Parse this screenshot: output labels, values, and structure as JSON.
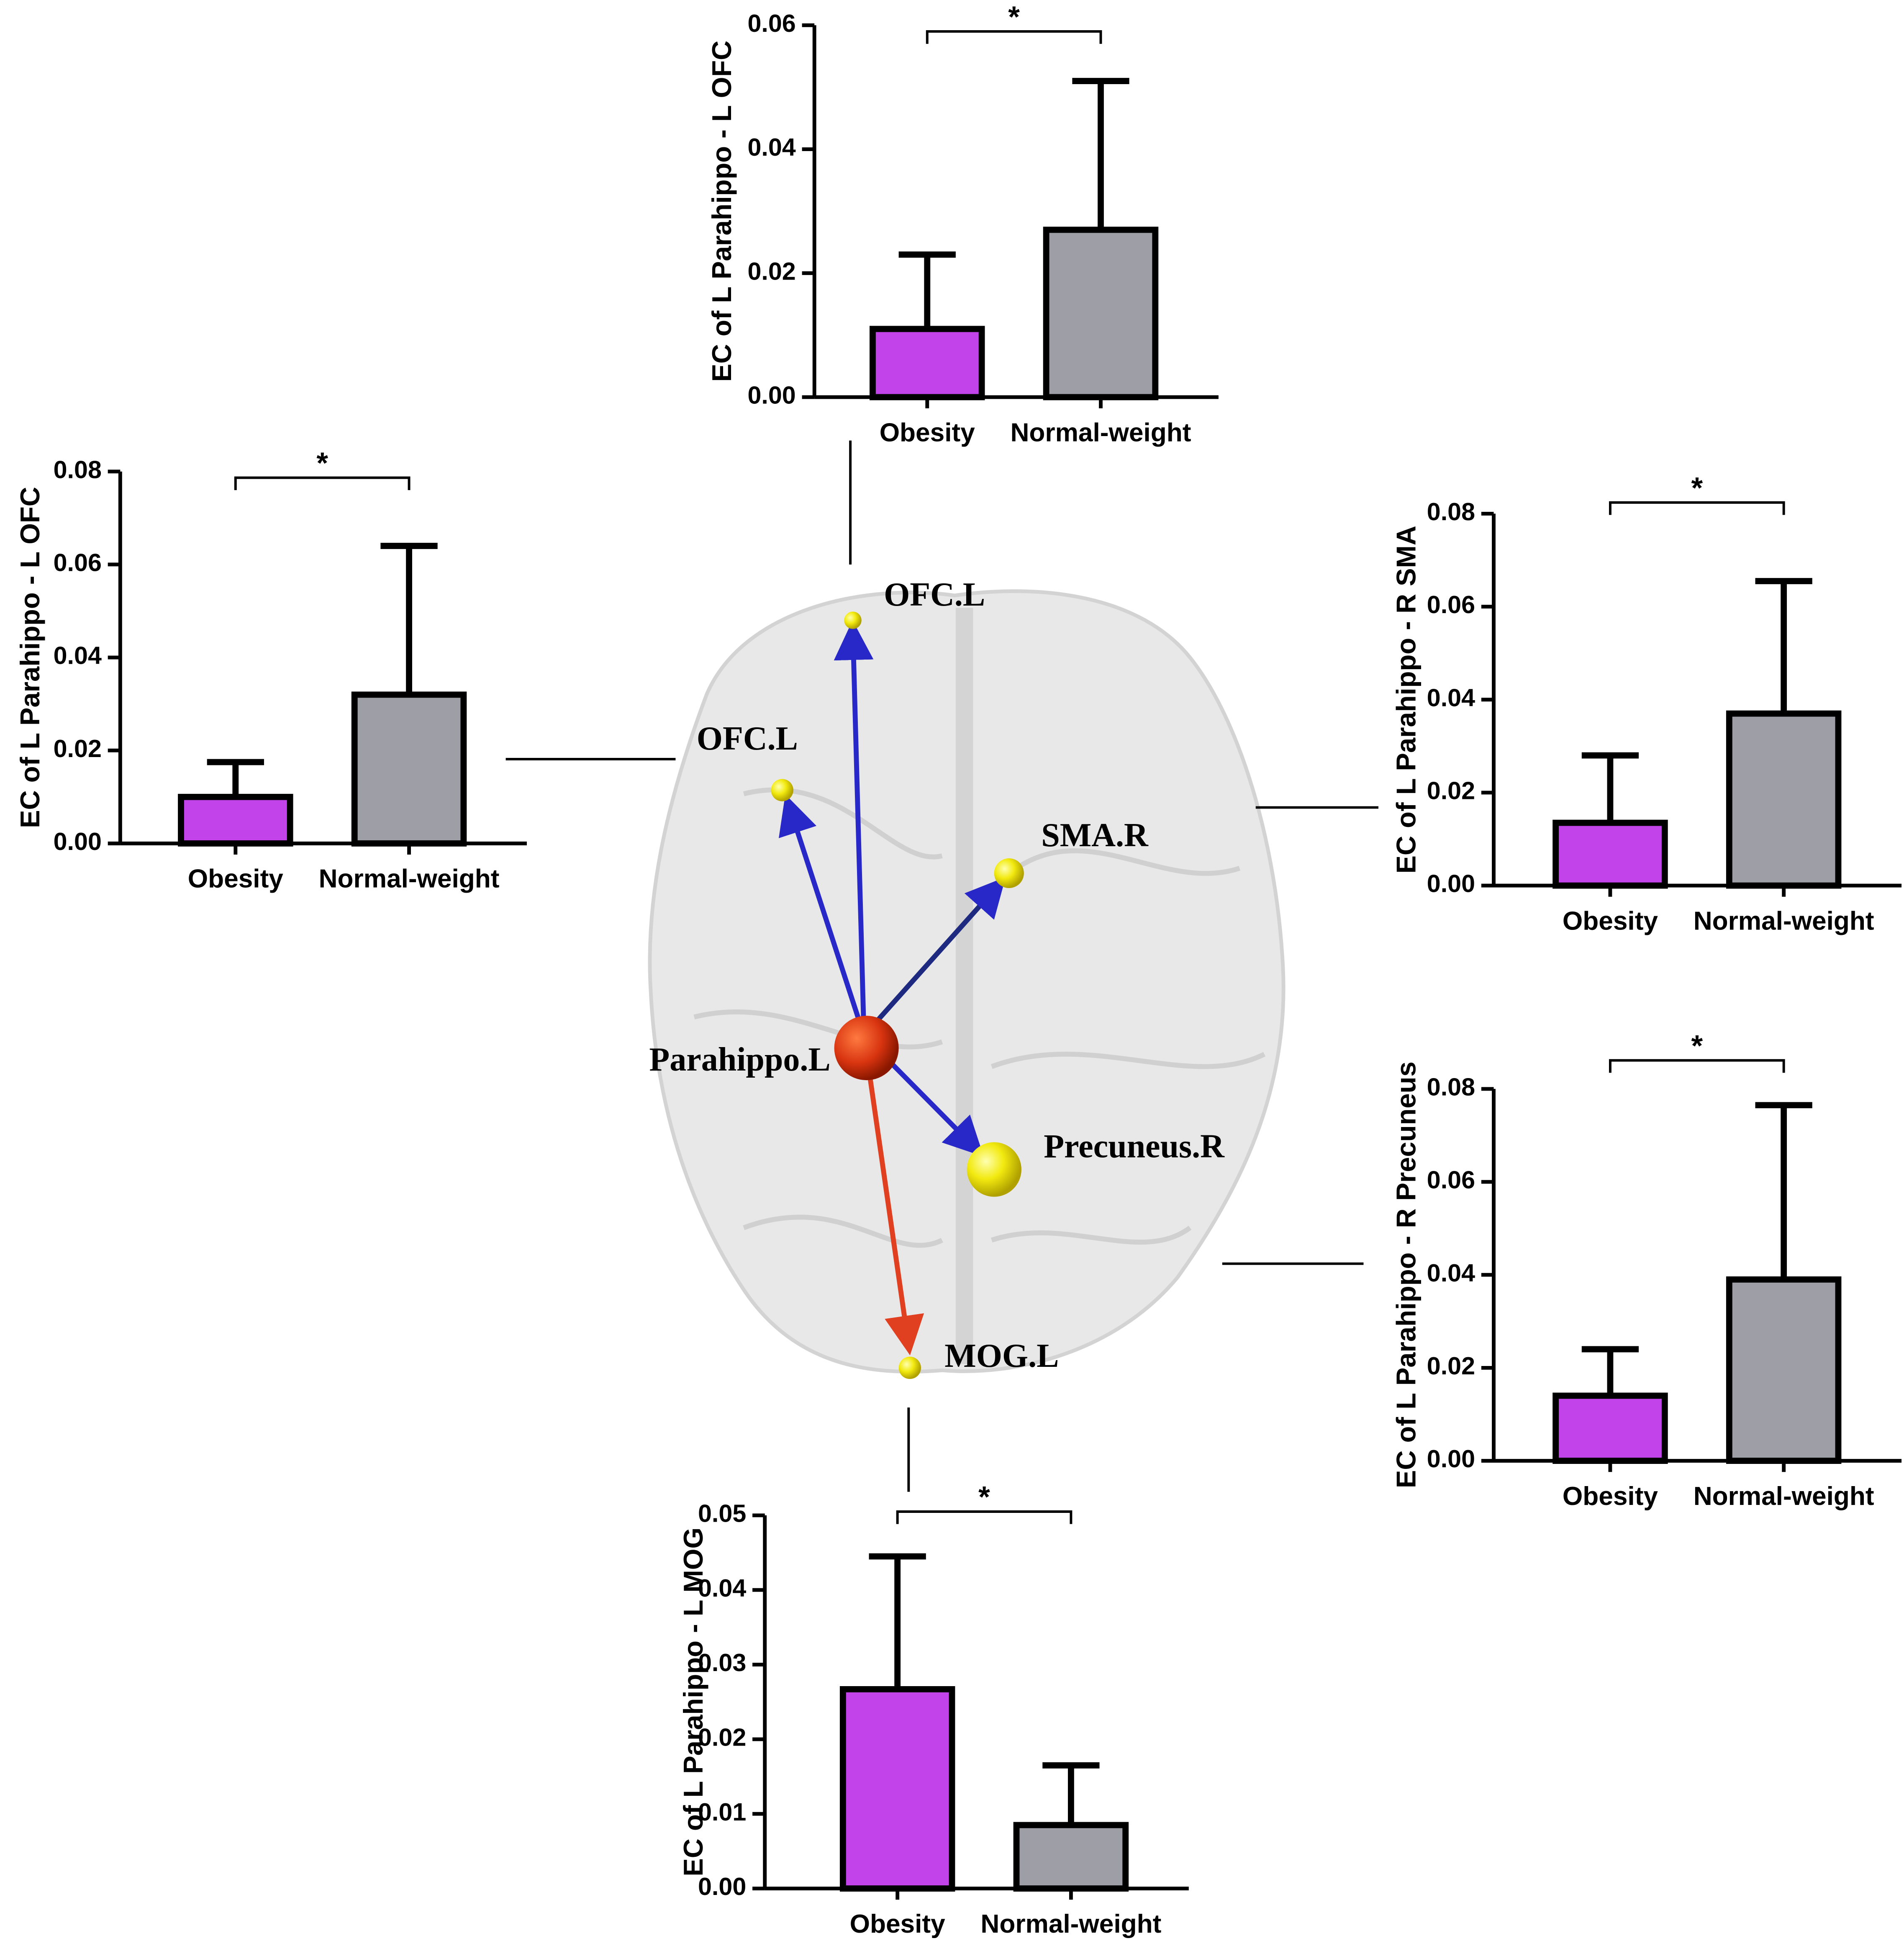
{
  "chart_data": [
    {
      "type": "bar",
      "ylabel": "EC of L Parahippo - L OFC",
      "categories": [
        "Obesity",
        "Normal-weight"
      ],
      "values": [
        0.011,
        0.027
      ],
      "errors": [
        0.012,
        0.024
      ],
      "colors": [
        "#c143e9",
        "#9e9ea6"
      ],
      "ylim": [
        0,
        0.06
      ],
      "yticks": [
        {
          "value": 0,
          "label": "0.00"
        },
        {
          "value": 0.02,
          "label": "0.02"
        },
        {
          "value": 0.04,
          "label": "0.04"
        },
        {
          "value": 0.06,
          "label": "0.06"
        }
      ],
      "annotation": "*"
    },
    {
      "type": "bar",
      "ylabel": "EC of L Parahippo - L OFC",
      "categories": [
        "Obesity",
        "Normal-weight"
      ],
      "values": [
        0.01,
        0.032
      ],
      "errors": [
        0.0075,
        0.032
      ],
      "colors": [
        "#c143e9",
        "#9e9ea6"
      ],
      "ylim": [
        0,
        0.08
      ],
      "yticks": [
        {
          "value": 0,
          "label": "0.00"
        },
        {
          "value": 0.02,
          "label": "0.02"
        },
        {
          "value": 0.04,
          "label": "0.04"
        },
        {
          "value": 0.06,
          "label": "0.06"
        },
        {
          "value": 0.08,
          "label": "0.08"
        }
      ],
      "annotation": "*"
    },
    {
      "type": "bar",
      "ylabel": "EC of L Parahippo - R SMA",
      "categories": [
        "Obesity",
        "Normal-weight"
      ],
      "values": [
        0.0135,
        0.037
      ],
      "errors": [
        0.0145,
        0.0285
      ],
      "colors": [
        "#c143e9",
        "#9e9ea6"
      ],
      "ylim": [
        0,
        0.08
      ],
      "yticks": [
        {
          "value": 0,
          "label": "0.00"
        },
        {
          "value": 0.02,
          "label": "0.02"
        },
        {
          "value": 0.04,
          "label": "0.04"
        },
        {
          "value": 0.06,
          "label": "0.06"
        },
        {
          "value": 0.08,
          "label": "0.08"
        }
      ],
      "annotation": "*"
    },
    {
      "type": "bar",
      "ylabel": "EC of L Parahippo - R Precuneus",
      "categories": [
        "Obesity",
        "Normal-weight"
      ],
      "values": [
        0.014,
        0.039
      ],
      "errors": [
        0.01,
        0.0375
      ],
      "colors": [
        "#c143e9",
        "#9e9ea6"
      ],
      "ylim": [
        0,
        0.08
      ],
      "yticks": [
        {
          "value": 0,
          "label": "0.00"
        },
        {
          "value": 0.02,
          "label": "0.02"
        },
        {
          "value": 0.04,
          "label": "0.04"
        },
        {
          "value": 0.06,
          "label": "0.06"
        },
        {
          "value": 0.08,
          "label": "0.08"
        }
      ],
      "annotation": "*"
    },
    {
      "type": "bar",
      "ylabel": "EC of L Parahippo - L MOG",
      "categories": [
        "Obesity",
        "Normal-weight"
      ],
      "values": [
        0.0267,
        0.0085
      ],
      "errors": [
        0.0178,
        0.008
      ],
      "colors": [
        "#c143e9",
        "#9e9ea6"
      ],
      "ylim": [
        0,
        0.05
      ],
      "yticks": [
        {
          "value": 0,
          "label": "0.00"
        },
        {
          "value": 0.01,
          "label": "0.01"
        },
        {
          "value": 0.02,
          "label": "0.02"
        },
        {
          "value": 0.03,
          "label": "0.03"
        },
        {
          "value": 0.04,
          "label": "0.04"
        },
        {
          "value": 0.05,
          "label": "0.05"
        }
      ],
      "annotation": "*"
    }
  ],
  "diagram": {
    "nodes": [
      "OFC.L",
      "OFC.L",
      "SMA.R",
      "Parahippo.L",
      "Precuneus.R",
      "MOG.L"
    ]
  }
}
